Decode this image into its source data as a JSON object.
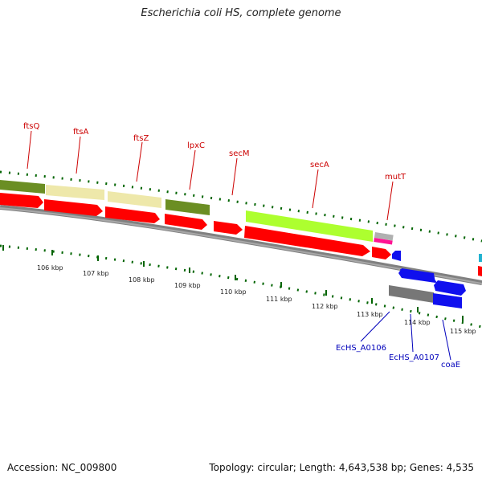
{
  "title": "Escherichia coli HS, complete genome",
  "footer": {
    "accession": "Accession: NC_009800",
    "topology": "Topology: circular; Length: 4,643,538 bp; Genes: 4,535"
  },
  "colors": {
    "cds_red": "#ff0000",
    "olive": "#6b8e23",
    "khaki": "#eee8aa",
    "lime": "#adff2f",
    "blue": "#0000ee",
    "gray": "#777777",
    "pink": "#ff1493",
    "dots": "#006400",
    "label_red": "#cc0000",
    "label_blue": "#0000bb"
  },
  "genes_top": [
    {
      "name": "ftsQ"
    },
    {
      "name": "ftsA"
    },
    {
      "name": "ftsZ"
    },
    {
      "name": "lpxC"
    },
    {
      "name": "secM"
    },
    {
      "name": "secA"
    },
    {
      "name": "mutT"
    }
  ],
  "genes_bottom": [
    {
      "name": "EcHS_A0106"
    },
    {
      "name": "EcHS_A0107"
    },
    {
      "name": "coaE"
    }
  ],
  "kbp_ticks": [
    "106 kbp",
    "107 kbp",
    "108 kbp",
    "109 kbp",
    "110 kbp",
    "111 kbp",
    "112 kbp",
    "113 kbp",
    "114 kbp",
    "115 kbp"
  ]
}
